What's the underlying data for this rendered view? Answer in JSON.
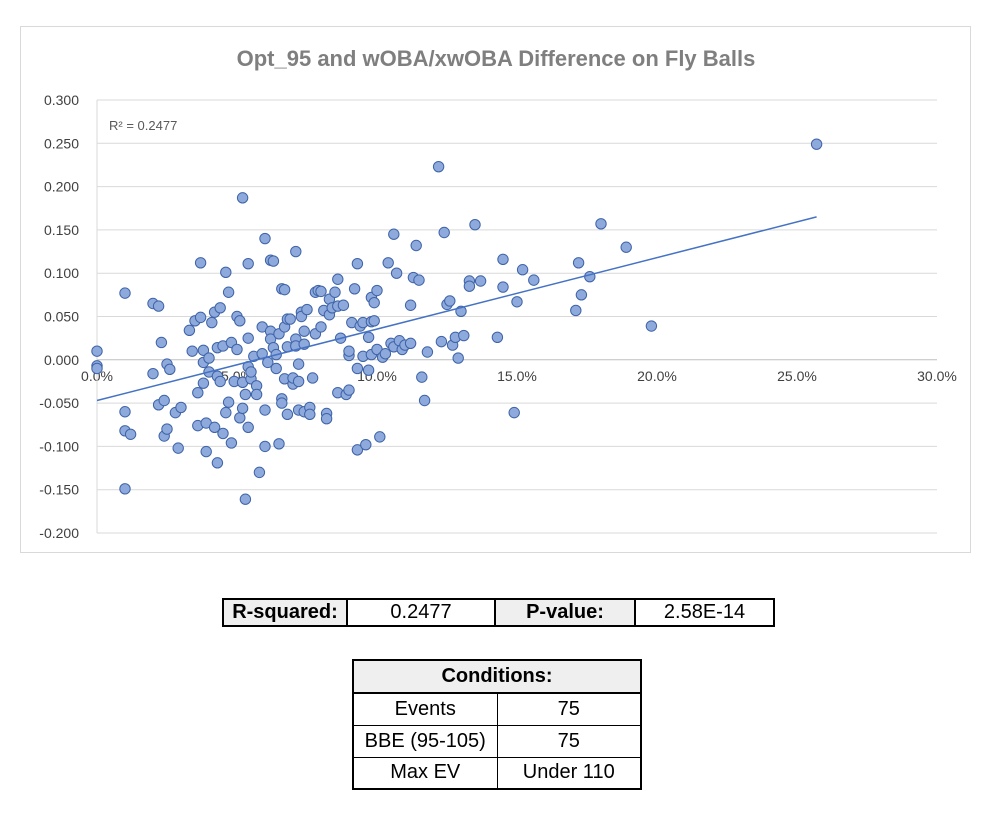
{
  "chart_data": {
    "type": "scatter",
    "title": "Opt_95 and wOBA/xwOBA Difference on Fly Balls",
    "xlabel": "",
    "ylabel": "",
    "xlim": [
      0,
      0.3
    ],
    "ylim": [
      -0.2,
      0.3
    ],
    "x_ticks": [
      "0.0%",
      "5.0%",
      "10.0%",
      "15.0%",
      "20.0%",
      "25.0%",
      "30.0%"
    ],
    "y_ticks": [
      "0.300",
      "0.250",
      "0.200",
      "0.150",
      "0.100",
      "0.050",
      "0.000",
      "-0.050",
      "-0.100",
      "-0.150",
      "-0.200"
    ],
    "annotation": "R² = 0.2477",
    "grid": true,
    "marker_color": "#8eaadc",
    "marker_edge": "#3f63a8",
    "trendline_color": "#4472c4",
    "trendline": {
      "x": [
        0.0,
        0.257
      ],
      "y": [
        -0.047,
        0.165
      ]
    },
    "points": [
      [
        0.0,
        0.01
      ],
      [
        0.0,
        -0.007
      ],
      [
        0.0,
        -0.01
      ],
      [
        0.01,
        0.077
      ],
      [
        0.01,
        -0.06
      ],
      [
        0.01,
        -0.082
      ],
      [
        0.01,
        -0.149
      ],
      [
        0.012,
        -0.086
      ],
      [
        0.02,
        -0.016
      ],
      [
        0.02,
        0.065
      ],
      [
        0.022,
        0.062
      ],
      [
        0.022,
        -0.052
      ],
      [
        0.023,
        0.02
      ],
      [
        0.024,
        -0.047
      ],
      [
        0.024,
        -0.088
      ],
      [
        0.025,
        -0.005
      ],
      [
        0.025,
        -0.08
      ],
      [
        0.026,
        -0.011
      ],
      [
        0.028,
        -0.061
      ],
      [
        0.029,
        -0.102
      ],
      [
        0.03,
        -0.055
      ],
      [
        0.033,
        0.034
      ],
      [
        0.034,
        0.01
      ],
      [
        0.035,
        0.045
      ],
      [
        0.036,
        -0.076
      ],
      [
        0.036,
        -0.038
      ],
      [
        0.037,
        0.112
      ],
      [
        0.037,
        0.049
      ],
      [
        0.038,
        0.011
      ],
      [
        0.038,
        -0.003
      ],
      [
        0.038,
        -0.027
      ],
      [
        0.039,
        -0.073
      ],
      [
        0.039,
        -0.106
      ],
      [
        0.04,
        -0.014
      ],
      [
        0.04,
        0.002
      ],
      [
        0.041,
        0.043
      ],
      [
        0.042,
        -0.078
      ],
      [
        0.042,
        0.055
      ],
      [
        0.043,
        0.014
      ],
      [
        0.043,
        -0.019
      ],
      [
        0.043,
        -0.119
      ],
      [
        0.044,
        0.06
      ],
      [
        0.044,
        -0.025
      ],
      [
        0.045,
        0.016
      ],
      [
        0.045,
        -0.085
      ],
      [
        0.046,
        0.101
      ],
      [
        0.046,
        -0.061
      ],
      [
        0.047,
        0.078
      ],
      [
        0.047,
        -0.049
      ],
      [
        0.048,
        0.02
      ],
      [
        0.048,
        -0.096
      ],
      [
        0.049,
        -0.025
      ],
      [
        0.05,
        0.05
      ],
      [
        0.05,
        0.012
      ],
      [
        0.051,
        0.045
      ],
      [
        0.051,
        -0.067
      ],
      [
        0.052,
        0.187
      ],
      [
        0.052,
        -0.026
      ],
      [
        0.052,
        -0.056
      ],
      [
        0.053,
        -0.04
      ],
      [
        0.053,
        -0.161
      ],
      [
        0.054,
        0.111
      ],
      [
        0.054,
        0.025
      ],
      [
        0.054,
        -0.008
      ],
      [
        0.054,
        -0.078
      ],
      [
        0.055,
        -0.022
      ],
      [
        0.055,
        -0.014
      ],
      [
        0.056,
        0.004
      ],
      [
        0.057,
        -0.03
      ],
      [
        0.057,
        -0.04
      ],
      [
        0.058,
        -0.13
      ],
      [
        0.059,
        0.038
      ],
      [
        0.059,
        0.007
      ],
      [
        0.06,
        0.14
      ],
      [
        0.06,
        -0.058
      ],
      [
        0.06,
        -0.1
      ],
      [
        0.061,
        -0.003
      ],
      [
        0.062,
        0.115
      ],
      [
        0.062,
        0.033
      ],
      [
        0.062,
        0.024
      ],
      [
        0.063,
        0.114
      ],
      [
        0.063,
        0.014
      ],
      [
        0.064,
        0.006
      ],
      [
        0.064,
        -0.01
      ],
      [
        0.065,
        0.03
      ],
      [
        0.065,
        -0.097
      ],
      [
        0.066,
        0.082
      ],
      [
        0.066,
        -0.045
      ],
      [
        0.066,
        -0.05
      ],
      [
        0.067,
        0.081
      ],
      [
        0.067,
        0.038
      ],
      [
        0.067,
        -0.022
      ],
      [
        0.068,
        0.047
      ],
      [
        0.068,
        0.015
      ],
      [
        0.068,
        -0.063
      ],
      [
        0.069,
        0.047
      ],
      [
        0.07,
        -0.028
      ],
      [
        0.07,
        -0.021
      ],
      [
        0.071,
        0.125
      ],
      [
        0.071,
        0.024
      ],
      [
        0.071,
        0.016
      ],
      [
        0.072,
        -0.005
      ],
      [
        0.072,
        -0.058
      ],
      [
        0.072,
        -0.025
      ],
      [
        0.073,
        0.055
      ],
      [
        0.073,
        0.05
      ],
      [
        0.074,
        0.033
      ],
      [
        0.074,
        0.018
      ],
      [
        0.074,
        -0.06
      ],
      [
        0.075,
        0.058
      ],
      [
        0.076,
        -0.055
      ],
      [
        0.076,
        -0.063
      ],
      [
        0.077,
        -0.021
      ],
      [
        0.078,
        0.03
      ],
      [
        0.078,
        0.078
      ],
      [
        0.079,
        0.08
      ],
      [
        0.08,
        0.079
      ],
      [
        0.08,
        0.038
      ],
      [
        0.081,
        0.057
      ],
      [
        0.082,
        -0.062
      ],
      [
        0.082,
        -0.068
      ],
      [
        0.083,
        0.07
      ],
      [
        0.083,
        0.052
      ],
      [
        0.084,
        0.06
      ],
      [
        0.085,
        0.078
      ],
      [
        0.086,
        0.093
      ],
      [
        0.086,
        0.062
      ],
      [
        0.086,
        -0.038
      ],
      [
        0.087,
        0.025
      ],
      [
        0.088,
        0.063
      ],
      [
        0.089,
        -0.04
      ],
      [
        0.09,
        0.005
      ],
      [
        0.09,
        0.01
      ],
      [
        0.09,
        -0.035
      ],
      [
        0.091,
        0.043
      ],
      [
        0.092,
        0.082
      ],
      [
        0.093,
        0.111
      ],
      [
        0.093,
        -0.01
      ],
      [
        0.093,
        -0.104
      ],
      [
        0.094,
        0.039
      ],
      [
        0.095,
        0.004
      ],
      [
        0.095,
        0.043
      ],
      [
        0.096,
        -0.098
      ],
      [
        0.097,
        0.026
      ],
      [
        0.097,
        -0.012
      ],
      [
        0.098,
        0.072
      ],
      [
        0.098,
        0.044
      ],
      [
        0.098,
        0.006
      ],
      [
        0.099,
        0.066
      ],
      [
        0.099,
        0.045
      ],
      [
        0.1,
        0.08
      ],
      [
        0.1,
        0.012
      ],
      [
        0.101,
        -0.089
      ],
      [
        0.102,
        0.003
      ],
      [
        0.103,
        0.007
      ],
      [
        0.104,
        0.112
      ],
      [
        0.105,
        0.019
      ],
      [
        0.106,
        0.145
      ],
      [
        0.106,
        0.015
      ],
      [
        0.107,
        0.1
      ],
      [
        0.108,
        0.022
      ],
      [
        0.109,
        0.012
      ],
      [
        0.11,
        0.017
      ],
      [
        0.112,
        0.019
      ],
      [
        0.112,
        0.063
      ],
      [
        0.113,
        0.095
      ],
      [
        0.114,
        0.132
      ],
      [
        0.115,
        0.092
      ],
      [
        0.116,
        -0.02
      ],
      [
        0.117,
        -0.047
      ],
      [
        0.118,
        0.009
      ],
      [
        0.122,
        0.223
      ],
      [
        0.123,
        0.021
      ],
      [
        0.124,
        0.147
      ],
      [
        0.125,
        0.064
      ],
      [
        0.126,
        0.068
      ],
      [
        0.127,
        0.017
      ],
      [
        0.128,
        0.026
      ],
      [
        0.129,
        0.002
      ],
      [
        0.13,
        0.056
      ],
      [
        0.131,
        0.028
      ],
      [
        0.133,
        0.091
      ],
      [
        0.133,
        0.085
      ],
      [
        0.135,
        0.156
      ],
      [
        0.137,
        0.091
      ],
      [
        0.143,
        0.026
      ],
      [
        0.145,
        0.084
      ],
      [
        0.145,
        0.116
      ],
      [
        0.149,
        -0.061
      ],
      [
        0.15,
        0.067
      ],
      [
        0.152,
        0.104
      ],
      [
        0.156,
        0.092
      ],
      [
        0.171,
        0.057
      ],
      [
        0.172,
        0.112
      ],
      [
        0.173,
        0.075
      ],
      [
        0.176,
        0.096
      ],
      [
        0.18,
        0.157
      ],
      [
        0.189,
        0.13
      ],
      [
        0.198,
        0.039
      ],
      [
        0.257,
        0.249
      ]
    ]
  },
  "stats": {
    "r_squared_label": "R-squared:",
    "r_squared_value": "0.2477",
    "p_value_label": "P-value:",
    "p_value_value": "2.58E-14"
  },
  "conditions": {
    "header": "Conditions:",
    "rows": [
      {
        "label": "Events",
        "value": "75"
      },
      {
        "label": "BBE (95-105)",
        "value": "75"
      },
      {
        "label": "Max EV",
        "value": "Under 110"
      }
    ]
  }
}
